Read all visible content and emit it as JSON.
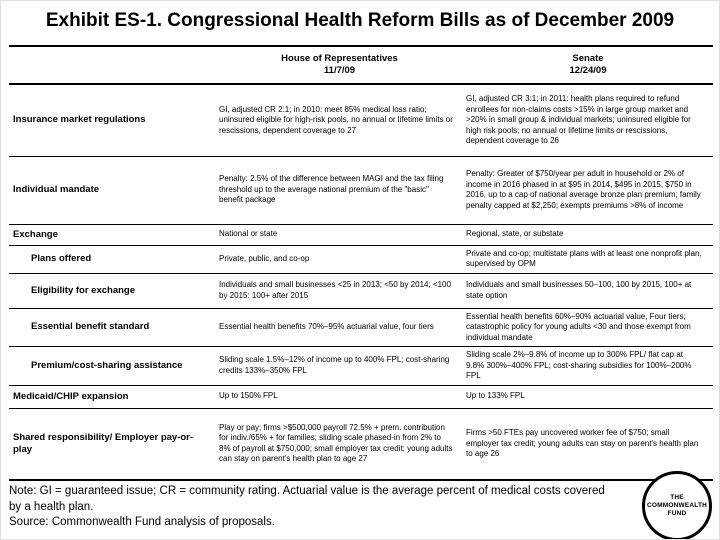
{
  "title": "Exhibit ES-1. Congressional Health Reform Bills as of December 2009",
  "table": {
    "columns": {
      "house": {
        "name": "House of Representatives",
        "date": "11/7/09"
      },
      "senate": {
        "name": "Senate",
        "date": "12/24/09"
      }
    },
    "rows": [
      {
        "label": "Insurance market regulations",
        "house": "GI, adjusted CR 2:1; in 2010: meet 85% medical loss ratio; uninsured eligible for high-risk pools, no annual or lifetime limits or rescissions, dependent coverage to 27",
        "senate": "GI, adjusted CR 3:1; in 2011: health plans required to refund enrollees for non-claims costs >15% in large group market and >20% in small group & individual markets; uninsured eligible for high risk pools; no annual or lifetime limits or rescissions, dependent coverage to 26"
      },
      {
        "label": "Individual mandate",
        "house": "Penalty: 2.5% of the difference between MAGI and the tax filing threshold up to the average national premium of the \"basic\" benefit package",
        "senate": "Penalty: Greater of $750/year per adult in household or 2% of income in 2016 phased in at $95 in 2014, $495 in 2015, $750 in 2016, up to a cap of national average bronze plan premium; family penalty capped at $2,250; exempts premiums >8% of income"
      },
      {
        "label": "Exchange",
        "house": "National or state",
        "senate": "Regional, state, or substate"
      },
      {
        "label": "Plans offered",
        "house": "Private, public, and co-op",
        "senate": "Private and co-op; multistate plans with at least one nonprofit plan, supervised by OPM"
      },
      {
        "label": "Eligibility for exchange",
        "house": "Individuals and small businesses <25 in 2013; <50 by 2014; <100 by 2015: 100+ after 2015",
        "senate": "Individuals and small businesses 50–100, 100 by 2015, 100+ at state option"
      },
      {
        "label": "Essential benefit standard",
        "house": "Essential health benefits 70%–95% actuarial value, four tiers",
        "senate": "Essential health benefits 60%–90% actuarial value, Four tiers; catastrophic policy for young adults <30 and those exempt from individual mandate"
      },
      {
        "label": "Premium/cost-sharing assistance",
        "house": "Sliding scale 1.5%–12% of income up to 400% FPL; cost-sharing credits 133%–350% FPL",
        "senate": "Sliding scale 2%–9.8% of income up to 300% FPL/ flat cap at 9.8% 300%–400% FPL; cost-sharing subsidies for 100%–200% FPL"
      },
      {
        "label": "Medicaid/CHIP expansion",
        "house": "Up to 150% FPL",
        "senate": "Up to 133% FPL"
      },
      {
        "label": "Shared responsibility/ Employer pay-or-play",
        "house": "Play or pay; firms >$500,000 payroll 72.5% + prem. contribution for indiv./65% + for families; sliding scale phased-in from 2% to 8% of payroll at $750,000; small employer tax credit; young adults can stay on parent's health plan to age 27",
        "senate": "Firms >50 FTEs pay uncovered worker fee of $750; small employer tax credit; young adults can stay on parent's health plan to age 26"
      }
    ]
  },
  "footer": {
    "note_line1": "Note: GI = guaranteed issue; CR = community rating. Actuarial value is the average percent of medical costs covered",
    "note_line2": "by a health plan.",
    "source": "Source: Commonwealth Fund analysis of proposals."
  },
  "logo": {
    "line1": "THE",
    "line2": "COMMONWEALTH",
    "line3": "FUND"
  },
  "colors": {
    "text": "#000000",
    "background": "#ffffff",
    "border": "#000000"
  }
}
